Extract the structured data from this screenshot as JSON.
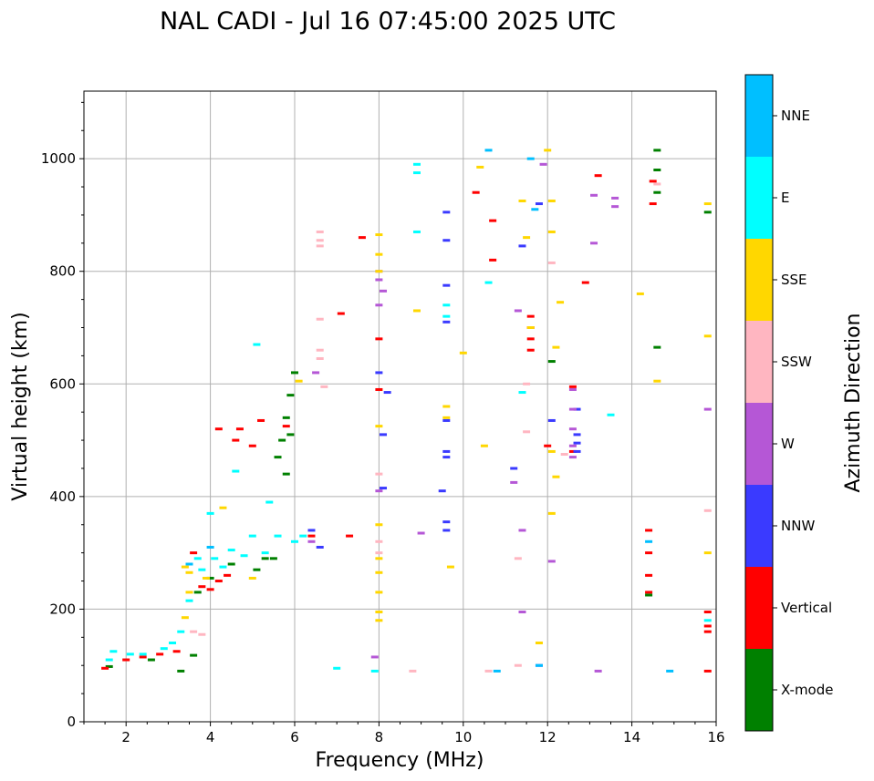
{
  "chart_data": {
    "type": "scatter",
    "title": "NAL CADI - Jul 16 07:45:00 2025 UTC",
    "xlabel": "Frequency (MHz)",
    "ylabel": "Virtual height (km)",
    "xlim": [
      1,
      16
    ],
    "ylim": [
      0,
      1120
    ],
    "x_ticks": [
      2,
      4,
      6,
      8,
      10,
      12,
      14,
      16
    ],
    "y_ticks": [
      0,
      200,
      400,
      600,
      800,
      1000
    ],
    "grid": true,
    "colorbar": {
      "label": "Azimuth Direction",
      "categories": [
        {
          "name": "X-mode",
          "color": "#008000"
        },
        {
          "name": "Vertical",
          "color": "#ff0000"
        },
        {
          "name": "NNW",
          "color": "#3a3aff"
        },
        {
          "name": "W",
          "color": "#b557d6"
        },
        {
          "name": "SSW",
          "color": "#ffb6c1"
        },
        {
          "name": "SSE",
          "color": "#ffd700"
        },
        {
          "name": "E",
          "color": "#00ffff"
        },
        {
          "name": "NNE",
          "color": "#00bfff"
        }
      ]
    },
    "series": [
      {
        "name": "X-mode",
        "points": [
          [
            3.7,
            230
          ],
          [
            4.0,
            255
          ],
          [
            4.5,
            280
          ],
          [
            5.1,
            270
          ],
          [
            5.5,
            290
          ],
          [
            5.6,
            470
          ],
          [
            5.7,
            500
          ],
          [
            5.8,
            540
          ],
          [
            5.9,
            580
          ],
          [
            6.0,
            620
          ],
          [
            14.6,
            1015
          ],
          [
            14.6,
            980
          ],
          [
            14.6,
            940
          ],
          [
            14.6,
            665
          ],
          [
            15.8,
            905
          ],
          [
            14.4,
            225
          ],
          [
            3.6,
            118
          ],
          [
            1.6,
            98
          ],
          [
            2.6,
            110
          ],
          [
            3.3,
            90
          ],
          [
            5.8,
            440
          ],
          [
            12.1,
            640
          ],
          [
            5.3,
            290
          ],
          [
            5.9,
            510
          ]
        ]
      },
      {
        "name": "Vertical",
        "points": [
          [
            1.5,
            95
          ],
          [
            2.0,
            110
          ],
          [
            2.4,
            115
          ],
          [
            2.8,
            120
          ],
          [
            3.2,
            125
          ],
          [
            3.6,
            300
          ],
          [
            3.8,
            240
          ],
          [
            4.0,
            235
          ],
          [
            4.2,
            250
          ],
          [
            4.4,
            260
          ],
          [
            4.7,
            520
          ],
          [
            4.6,
            500
          ],
          [
            5.0,
            490
          ],
          [
            5.2,
            535
          ],
          [
            5.8,
            525
          ],
          [
            6.4,
            330
          ],
          [
            7.1,
            725
          ],
          [
            7.6,
            860
          ],
          [
            10.3,
            940
          ],
          [
            10.7,
            890
          ],
          [
            10.7,
            820
          ],
          [
            11.6,
            720
          ],
          [
            11.6,
            700
          ],
          [
            11.6,
            680
          ],
          [
            11.6,
            660
          ],
          [
            12.0,
            490
          ],
          [
            12.6,
            595
          ],
          [
            12.6,
            480
          ],
          [
            12.9,
            780
          ],
          [
            13.2,
            970
          ],
          [
            14.5,
            920
          ],
          [
            14.5,
            960
          ],
          [
            14.4,
            340
          ],
          [
            14.4,
            300
          ],
          [
            14.4,
            260
          ],
          [
            14.4,
            230
          ],
          [
            15.8,
            195
          ],
          [
            15.8,
            170
          ],
          [
            15.8,
            160
          ],
          [
            15.8,
            90
          ],
          [
            8.0,
            680
          ],
          [
            7.3,
            330
          ],
          [
            8.0,
            590
          ],
          [
            4.2,
            520
          ]
        ]
      },
      {
        "name": "NNW",
        "points": [
          [
            6.4,
            340
          ],
          [
            6.6,
            310
          ],
          [
            8.1,
            510
          ],
          [
            8.1,
            415
          ],
          [
            8.2,
            585
          ],
          [
            9.6,
            905
          ],
          [
            9.6,
            855
          ],
          [
            9.6,
            710
          ],
          [
            9.6,
            535
          ],
          [
            9.6,
            480
          ],
          [
            9.6,
            470
          ],
          [
            9.6,
            355
          ],
          [
            9.6,
            340
          ],
          [
            11.4,
            845
          ],
          [
            11.8,
            920
          ],
          [
            11.8,
            100
          ],
          [
            12.1,
            535
          ],
          [
            12.7,
            555
          ],
          [
            12.7,
            510
          ],
          [
            12.7,
            495
          ],
          [
            12.7,
            480
          ],
          [
            9.6,
            775
          ],
          [
            11.2,
            450
          ],
          [
            8.0,
            620
          ],
          [
            9.5,
            410
          ]
        ]
      },
      {
        "name": "W",
        "points": [
          [
            6.4,
            320
          ],
          [
            6.5,
            620
          ],
          [
            8.0,
            410
          ],
          [
            8.1,
            765
          ],
          [
            8.0,
            785
          ],
          [
            8.0,
            740
          ],
          [
            9.0,
            335
          ],
          [
            11.3,
            730
          ],
          [
            11.4,
            340
          ],
          [
            11.4,
            195
          ],
          [
            11.2,
            425
          ],
          [
            11.9,
            990
          ],
          [
            12.6,
            590
          ],
          [
            12.6,
            555
          ],
          [
            12.6,
            520
          ],
          [
            12.6,
            490
          ],
          [
            12.6,
            470
          ],
          [
            12.1,
            285
          ],
          [
            13.1,
            935
          ],
          [
            13.1,
            850
          ],
          [
            13.6,
            930
          ],
          [
            13.6,
            915
          ],
          [
            15.8,
            555
          ],
          [
            13.2,
            90
          ],
          [
            7.9,
            115
          ],
          [
            8.0,
            800
          ]
        ]
      },
      {
        "name": "SSW",
        "points": [
          [
            3.8,
            155
          ],
          [
            3.6,
            160
          ],
          [
            6.6,
            870
          ],
          [
            6.6,
            855
          ],
          [
            6.6,
            845
          ],
          [
            6.6,
            715
          ],
          [
            6.6,
            660
          ],
          [
            6.6,
            645
          ],
          [
            6.7,
            595
          ],
          [
            8.0,
            440
          ],
          [
            8.0,
            320
          ],
          [
            8.0,
            300
          ],
          [
            8.8,
            90
          ],
          [
            10.6,
            90
          ],
          [
            11.3,
            100
          ],
          [
            11.5,
            515
          ],
          [
            11.3,
            290
          ],
          [
            12.4,
            475
          ],
          [
            14.6,
            955
          ],
          [
            15.8,
            375
          ],
          [
            11.5,
            600
          ],
          [
            12.1,
            815
          ]
        ]
      },
      {
        "name": "SSE",
        "points": [
          [
            3.4,
            275
          ],
          [
            3.5,
            265
          ],
          [
            3.5,
            230
          ],
          [
            3.4,
            185
          ],
          [
            3.9,
            255
          ],
          [
            4.3,
            380
          ],
          [
            5.0,
            255
          ],
          [
            6.1,
            605
          ],
          [
            8.0,
            865
          ],
          [
            8.0,
            830
          ],
          [
            8.0,
            800
          ],
          [
            8.0,
            525
          ],
          [
            8.0,
            350
          ],
          [
            8.0,
            290
          ],
          [
            8.0,
            265
          ],
          [
            8.0,
            230
          ],
          [
            8.0,
            195
          ],
          [
            8.0,
            180
          ],
          [
            8.9,
            730
          ],
          [
            9.6,
            560
          ],
          [
            9.6,
            540
          ],
          [
            9.7,
            275
          ],
          [
            10.0,
            655
          ],
          [
            10.5,
            490
          ],
          [
            11.5,
            860
          ],
          [
            11.6,
            700
          ],
          [
            12.0,
            1015
          ],
          [
            12.1,
            925
          ],
          [
            12.1,
            870
          ],
          [
            12.2,
            665
          ],
          [
            12.1,
            480
          ],
          [
            12.2,
            435
          ],
          [
            12.1,
            370
          ],
          [
            12.3,
            745
          ],
          [
            14.2,
            760
          ],
          [
            14.6,
            605
          ],
          [
            15.8,
            920
          ],
          [
            15.8,
            685
          ],
          [
            15.8,
            300
          ],
          [
            11.8,
            140
          ],
          [
            10.4,
            985
          ],
          [
            11.4,
            925
          ]
        ]
      },
      {
        "name": "E",
        "points": [
          [
            1.6,
            110
          ],
          [
            1.7,
            125
          ],
          [
            2.1,
            120
          ],
          [
            2.4,
            120
          ],
          [
            2.9,
            130
          ],
          [
            3.1,
            140
          ],
          [
            3.3,
            160
          ],
          [
            3.5,
            215
          ],
          [
            3.7,
            290
          ],
          [
            3.8,
            270
          ],
          [
            4.1,
            290
          ],
          [
            4.3,
            275
          ],
          [
            4.5,
            305
          ],
          [
            4.8,
            295
          ],
          [
            5.0,
            330
          ],
          [
            5.3,
            300
          ],
          [
            5.6,
            330
          ],
          [
            5.1,
            670
          ],
          [
            6.2,
            330
          ],
          [
            6.0,
            320
          ],
          [
            8.9,
            990
          ],
          [
            8.9,
            975
          ],
          [
            8.9,
            870
          ],
          [
            9.6,
            720
          ],
          [
            9.6,
            740
          ],
          [
            10.6,
            780
          ],
          [
            11.4,
            585
          ],
          [
            13.5,
            545
          ],
          [
            15.8,
            180
          ],
          [
            7.0,
            95
          ],
          [
            7.9,
            90
          ],
          [
            4.0,
            370
          ],
          [
            4.6,
            445
          ],
          [
            5.4,
            390
          ]
        ]
      },
      {
        "name": "NNE",
        "points": [
          [
            10.6,
            1015
          ],
          [
            10.8,
            90
          ],
          [
            11.6,
            1000
          ],
          [
            11.7,
            910
          ],
          [
            11.8,
            100
          ],
          [
            14.9,
            90
          ],
          [
            14.4,
            320
          ],
          [
            3.5,
            280
          ],
          [
            4.0,
            310
          ]
        ]
      }
    ]
  }
}
